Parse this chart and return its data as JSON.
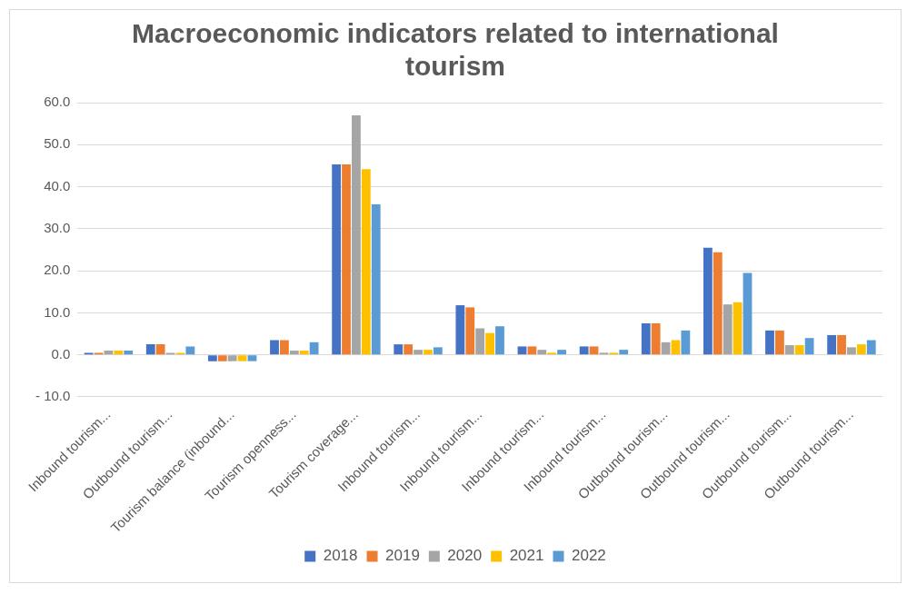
{
  "chart_data": {
    "type": "bar",
    "title": "Macroeconomic indicators related to international tourism",
    "categories": [
      "Inbound tourism...",
      "Outbound tourism...",
      "Tourism balance (inbound...",
      "Tourism openness...",
      "Tourism coverage...",
      "Inbound tourism...",
      "Inbound tourism...",
      "Inbound tourism...",
      "Inbound tourism...",
      "Outbound tourism...",
      "Outbound tourism...",
      "Outbound tourism...",
      "Outbound tourism..."
    ],
    "series": [
      {
        "name": "2018",
        "color": "#4472c4",
        "values": [
          0.5,
          2.5,
          -1.5,
          3.5,
          45.3,
          2.5,
          11.8,
          2.0,
          2.0,
          7.5,
          25.5,
          5.8,
          4.7
        ]
      },
      {
        "name": "2019",
        "color": "#ed7d31",
        "values": [
          0.5,
          2.5,
          -1.5,
          3.5,
          45.3,
          2.5,
          11.3,
          2.0,
          2.0,
          7.5,
          24.4,
          5.8,
          4.7
        ]
      },
      {
        "name": "2020",
        "color": "#a5a5a5",
        "values": [
          1.0,
          0.5,
          -1.5,
          1.0,
          57.0,
          1.2,
          6.3,
          1.2,
          0.5,
          3.0,
          12.0,
          2.3,
          1.8
        ]
      },
      {
        "name": "2021",
        "color": "#ffc000",
        "values": [
          1.0,
          0.5,
          -1.5,
          1.0,
          44.2,
          1.2,
          5.2,
          0.5,
          0.5,
          3.5,
          12.5,
          2.3,
          2.5
        ]
      },
      {
        "name": "2022",
        "color": "#5b9bd5",
        "values": [
          1.0,
          2.0,
          -1.5,
          3.0,
          35.8,
          1.8,
          6.8,
          1.2,
          1.2,
          5.8,
          19.5,
          4.0,
          3.5
        ]
      }
    ],
    "ylim": [
      -10,
      60
    ],
    "yticks": [
      {
        "value": -10,
        "label": "- 10.0"
      },
      {
        "value": 0,
        "label": "0.0"
      },
      {
        "value": 10,
        "label": "10.0"
      },
      {
        "value": 20,
        "label": "20.0"
      },
      {
        "value": 30,
        "label": "30.0"
      },
      {
        "value": 40,
        "label": "40.0"
      },
      {
        "value": 50,
        "label": "50.0"
      },
      {
        "value": 60,
        "label": "60.0"
      }
    ],
    "grid": "y",
    "legend": "bottom"
  }
}
